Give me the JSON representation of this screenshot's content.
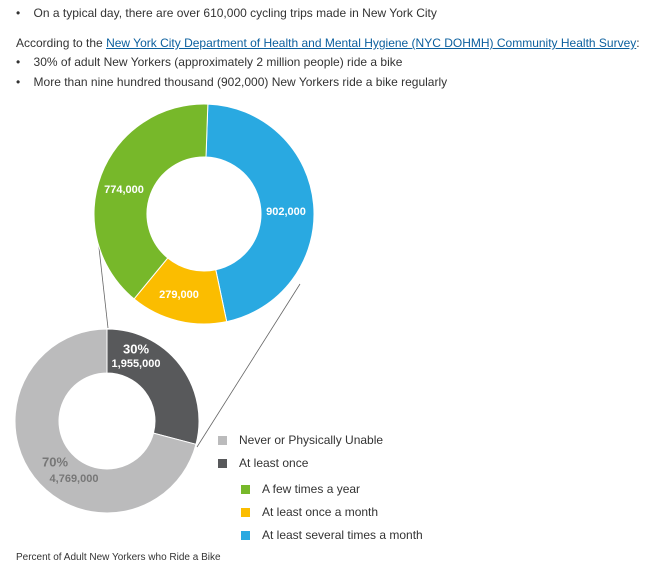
{
  "text": {
    "bullet_top": "On a typical day, there are over 610,000 cycling trips made in New York City",
    "intro_prefix": "According to the",
    "intro_link": "New York City Department of Health and Mental Hygiene (NYC DOHMH) Community Health Survey",
    "intro_suffix": ":",
    "bullets": [
      "30% of adult New Yorkers (approximately 2 million people) ride a bike",
      "More than nine hundred thousand (902,000) New Yorkers ride a bike regularly"
    ],
    "caption": "Percent of Adult New Yorkers who Ride a Bike"
  },
  "chart_data": [
    {
      "type": "donut",
      "categories": [
        "At least several times a month",
        "At least once a month",
        "A few times a year"
      ],
      "values": [
        902000,
        279000,
        774000
      ],
      "value_labels": [
        "902,000",
        "279,000",
        "774,000"
      ],
      "colors": [
        "#29a9e1",
        "#fbbd00",
        "#77b82a"
      ]
    },
    {
      "type": "donut",
      "categories": [
        "At least once",
        "Never or Physically Unable"
      ],
      "values": [
        1955000,
        4769000
      ],
      "value_labels": [
        "1,955,000",
        "4,769,000"
      ],
      "percents": [
        30,
        70
      ],
      "percent_labels": [
        "30%",
        "70%"
      ],
      "colors": [
        "#58595b",
        "#bbbbbc"
      ]
    }
  ]
}
